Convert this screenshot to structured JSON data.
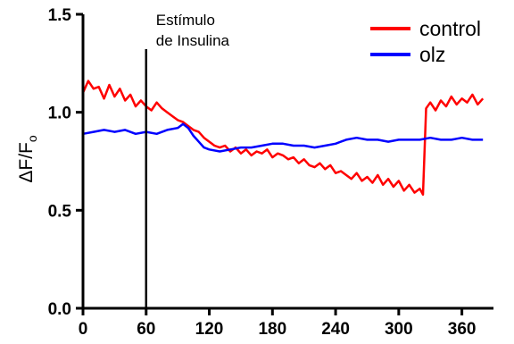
{
  "chart_data": {
    "type": "line",
    "ylabel": "ΔF/F",
    "ylabel_sub": "o",
    "xlim": [
      0,
      390
    ],
    "ylim": [
      0,
      1.5
    ],
    "xticks": [
      0,
      60,
      120,
      180,
      240,
      300,
      360
    ],
    "yticks": [
      0.0,
      0.5,
      1.0,
      1.5
    ],
    "ytick_labels": [
      "0.0",
      "0.5",
      "1.0",
      "1.5"
    ],
    "grid": false,
    "legend_position": "top-right",
    "annotation": {
      "lines": [
        "Estímulo",
        "de Insulina"
      ],
      "x": 60
    },
    "series": [
      {
        "name": "control",
        "color": "#ff0000",
        "points": [
          [
            0,
            1.1
          ],
          [
            5,
            1.16
          ],
          [
            10,
            1.12
          ],
          [
            15,
            1.13
          ],
          [
            20,
            1.07
          ],
          [
            25,
            1.14
          ],
          [
            30,
            1.08
          ],
          [
            35,
            1.12
          ],
          [
            40,
            1.06
          ],
          [
            45,
            1.09
          ],
          [
            50,
            1.03
          ],
          [
            55,
            1.06
          ],
          [
            60,
            1.03
          ],
          [
            65,
            1.01
          ],
          [
            70,
            1.05
          ],
          [
            75,
            1.02
          ],
          [
            80,
            1.0
          ],
          [
            85,
            0.98
          ],
          [
            90,
            0.96
          ],
          [
            95,
            0.95
          ],
          [
            100,
            0.93
          ],
          [
            105,
            0.91
          ],
          [
            110,
            0.9
          ],
          [
            115,
            0.87
          ],
          [
            120,
            0.85
          ],
          [
            125,
            0.83
          ],
          [
            130,
            0.82
          ],
          [
            135,
            0.83
          ],
          [
            140,
            0.8
          ],
          [
            145,
            0.82
          ],
          [
            150,
            0.79
          ],
          [
            155,
            0.81
          ],
          [
            160,
            0.78
          ],
          [
            165,
            0.8
          ],
          [
            170,
            0.79
          ],
          [
            175,
            0.81
          ],
          [
            180,
            0.77
          ],
          [
            185,
            0.79
          ],
          [
            190,
            0.78
          ],
          [
            195,
            0.76
          ],
          [
            200,
            0.77
          ],
          [
            205,
            0.74
          ],
          [
            210,
            0.76
          ],
          [
            215,
            0.73
          ],
          [
            220,
            0.72
          ],
          [
            225,
            0.74
          ],
          [
            230,
            0.71
          ],
          [
            235,
            0.73
          ],
          [
            240,
            0.69
          ],
          [
            245,
            0.7
          ],
          [
            250,
            0.68
          ],
          [
            255,
            0.66
          ],
          [
            260,
            0.69
          ],
          [
            265,
            0.65
          ],
          [
            270,
            0.67
          ],
          [
            275,
            0.64
          ],
          [
            280,
            0.68
          ],
          [
            285,
            0.63
          ],
          [
            290,
            0.66
          ],
          [
            295,
            0.62
          ],
          [
            300,
            0.65
          ],
          [
            305,
            0.6
          ],
          [
            310,
            0.63
          ],
          [
            315,
            0.59
          ],
          [
            320,
            0.61
          ],
          [
            323,
            0.58
          ],
          [
            326,
            1.02
          ],
          [
            330,
            1.05
          ],
          [
            335,
            1.01
          ],
          [
            340,
            1.06
          ],
          [
            345,
            1.03
          ],
          [
            350,
            1.08
          ],
          [
            355,
            1.04
          ],
          [
            360,
            1.07
          ],
          [
            365,
            1.05
          ],
          [
            370,
            1.09
          ],
          [
            375,
            1.04
          ],
          [
            380,
            1.07
          ]
        ]
      },
      {
        "name": "olz",
        "color": "#0000ff",
        "points": [
          [
            0,
            0.89
          ],
          [
            10,
            0.9
          ],
          [
            20,
            0.91
          ],
          [
            30,
            0.9
          ],
          [
            40,
            0.91
          ],
          [
            50,
            0.89
          ],
          [
            60,
            0.9
          ],
          [
            70,
            0.89
          ],
          [
            80,
            0.91
          ],
          [
            90,
            0.92
          ],
          [
            95,
            0.94
          ],
          [
            100,
            0.92
          ],
          [
            105,
            0.88
          ],
          [
            110,
            0.85
          ],
          [
            115,
            0.82
          ],
          [
            120,
            0.81
          ],
          [
            130,
            0.8
          ],
          [
            140,
            0.81
          ],
          [
            150,
            0.82
          ],
          [
            160,
            0.82
          ],
          [
            170,
            0.83
          ],
          [
            180,
            0.84
          ],
          [
            190,
            0.84
          ],
          [
            200,
            0.83
          ],
          [
            210,
            0.83
          ],
          [
            220,
            0.82
          ],
          [
            230,
            0.83
          ],
          [
            240,
            0.84
          ],
          [
            250,
            0.86
          ],
          [
            260,
            0.87
          ],
          [
            270,
            0.86
          ],
          [
            280,
            0.86
          ],
          [
            290,
            0.85
          ],
          [
            300,
            0.86
          ],
          [
            310,
            0.86
          ],
          [
            320,
            0.86
          ],
          [
            330,
            0.87
          ],
          [
            340,
            0.86
          ],
          [
            350,
            0.86
          ],
          [
            360,
            0.87
          ],
          [
            370,
            0.86
          ],
          [
            380,
            0.86
          ]
        ]
      }
    ]
  }
}
